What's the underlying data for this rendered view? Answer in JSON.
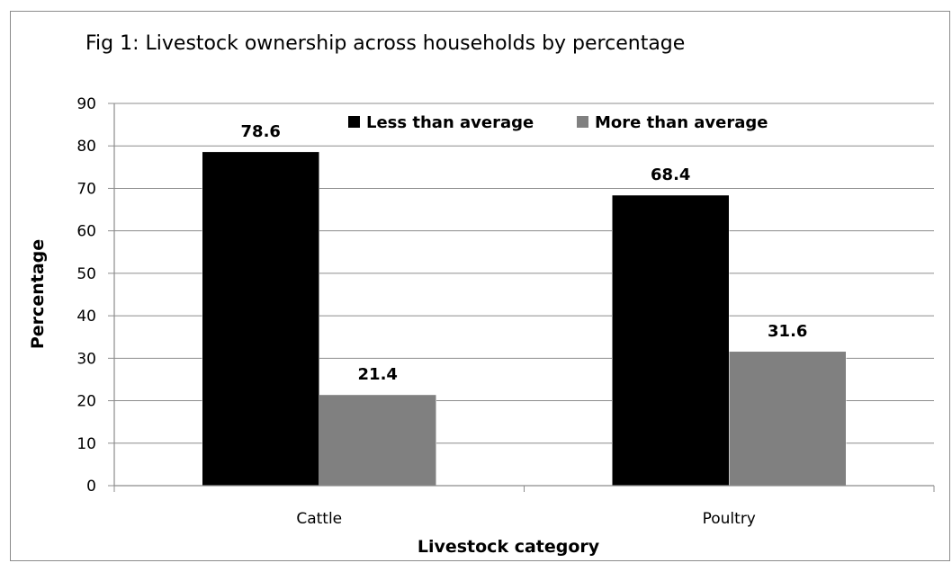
{
  "chart_data": {
    "type": "bar",
    "title": "Fig 1: Livestock ownership across households by percentage",
    "xlabel": "Livestock category",
    "ylabel": "Percentage",
    "categories": [
      "Cattle",
      "Poultry"
    ],
    "series": [
      {
        "name": "Less than average",
        "color": "#000000",
        "values": [
          78.6,
          68.4
        ]
      },
      {
        "name": "More than average",
        "color": "#808080",
        "values": [
          21.4,
          31.6
        ]
      }
    ],
    "ylim": [
      0,
      90
    ],
    "yticks": [
      "0",
      "10",
      "20",
      "30",
      "40",
      "50",
      "60",
      "70",
      "80",
      "90"
    ],
    "data_labels": [
      "78.6",
      "68.4",
      "21.4",
      "31.6"
    ],
    "grid": true,
    "legend_position": "top-right"
  }
}
